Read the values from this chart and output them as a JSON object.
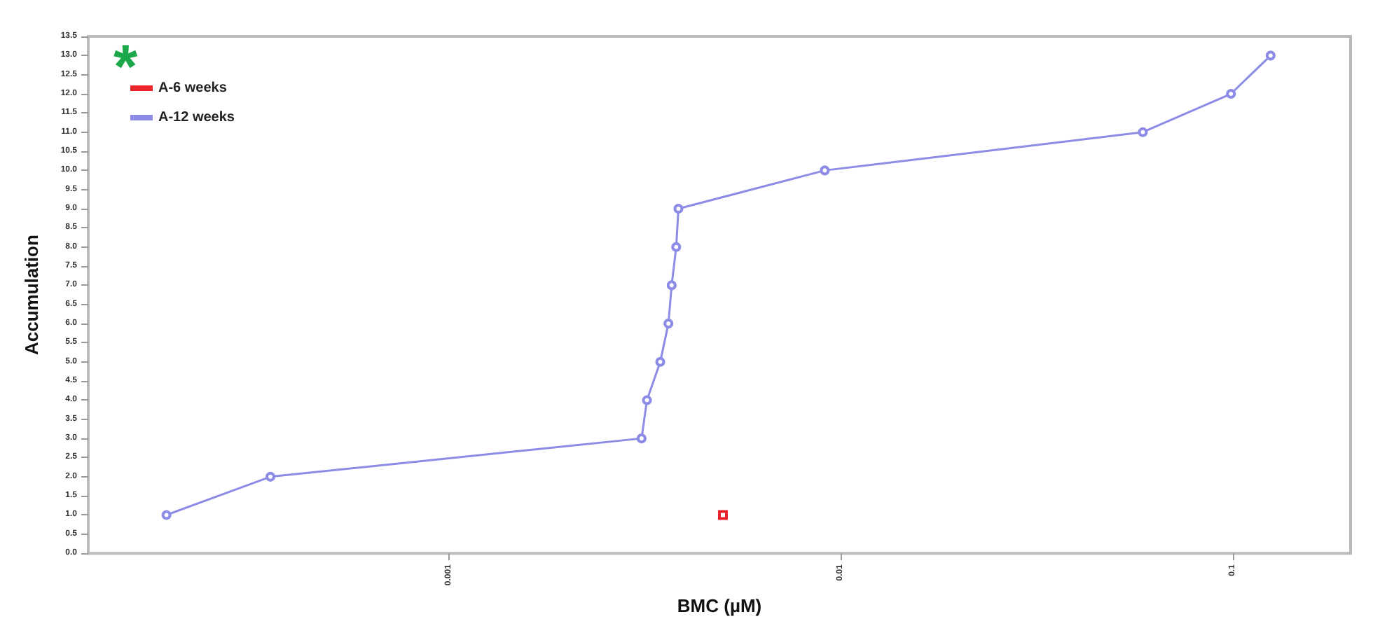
{
  "chart_data": {
    "type": "line",
    "xlabel": "BMC (µM)",
    "ylabel": "Accumulation",
    "log": "x",
    "xlim": [
      0.00012,
      0.2
    ],
    "xticks": [
      0.001,
      0.01,
      0.1
    ],
    "ylim": [
      0,
      13.5
    ],
    "yticks": [
      {
        "value": 0,
        "label": "0.0"
      },
      {
        "value": 0.5,
        "label": "0.5"
      },
      {
        "value": 1,
        "label": "1.0"
      },
      {
        "value": 1.5,
        "label": "1.5"
      },
      {
        "value": 2,
        "label": "2.0"
      },
      {
        "value": 2.5,
        "label": "2.5"
      },
      {
        "value": 3,
        "label": "3.0"
      },
      {
        "value": 3.5,
        "label": "3.5"
      },
      {
        "value": 4,
        "label": "4.0"
      },
      {
        "value": 4.5,
        "label": "4.5"
      },
      {
        "value": 5,
        "label": "5.0"
      },
      {
        "value": 5.5,
        "label": "5.5"
      },
      {
        "value": 6,
        "label": "6.0"
      },
      {
        "value": 6.5,
        "label": "6.5"
      },
      {
        "value": 7,
        "label": "7.0"
      },
      {
        "value": 7.5,
        "label": "7.5"
      },
      {
        "value": 8,
        "label": "8.0"
      },
      {
        "value": 8.5,
        "label": "8.5"
      },
      {
        "value": 9,
        "label": "9.0"
      },
      {
        "value": 9.5,
        "label": "9.5"
      },
      {
        "value": 10,
        "label": "10.0"
      },
      {
        "value": 10.5,
        "label": "10.5"
      },
      {
        "value": 11,
        "label": "11.0"
      },
      {
        "value": 11.5,
        "label": "11.5"
      },
      {
        "value": 12,
        "label": "12.0"
      },
      {
        "value": 12.5,
        "label": "12.5"
      },
      {
        "value": 13,
        "label": "13.0"
      },
      {
        "value": 13.5,
        "label": "13.5"
      }
    ],
    "grid": false,
    "legend": "top left",
    "annotations": [
      "*"
    ],
    "series": [
      {
        "name": "A-6 weeks",
        "color": "#e8232a",
        "marker": "square",
        "x": [
          0.005
        ],
        "values": [
          1
        ]
      },
      {
        "name": "A-12 weeks",
        "color": "#8c8ce6",
        "marker": "circle",
        "x": [
          0.00019,
          0.00035,
          0.0031,
          0.0032,
          0.00346,
          0.00363,
          0.0037,
          0.0038,
          0.00385,
          0.0091,
          0.059,
          0.099,
          0.125
        ],
        "values": [
          1,
          2,
          3,
          4,
          5,
          6,
          7,
          8,
          9,
          10,
          11,
          12,
          13
        ]
      }
    ]
  }
}
